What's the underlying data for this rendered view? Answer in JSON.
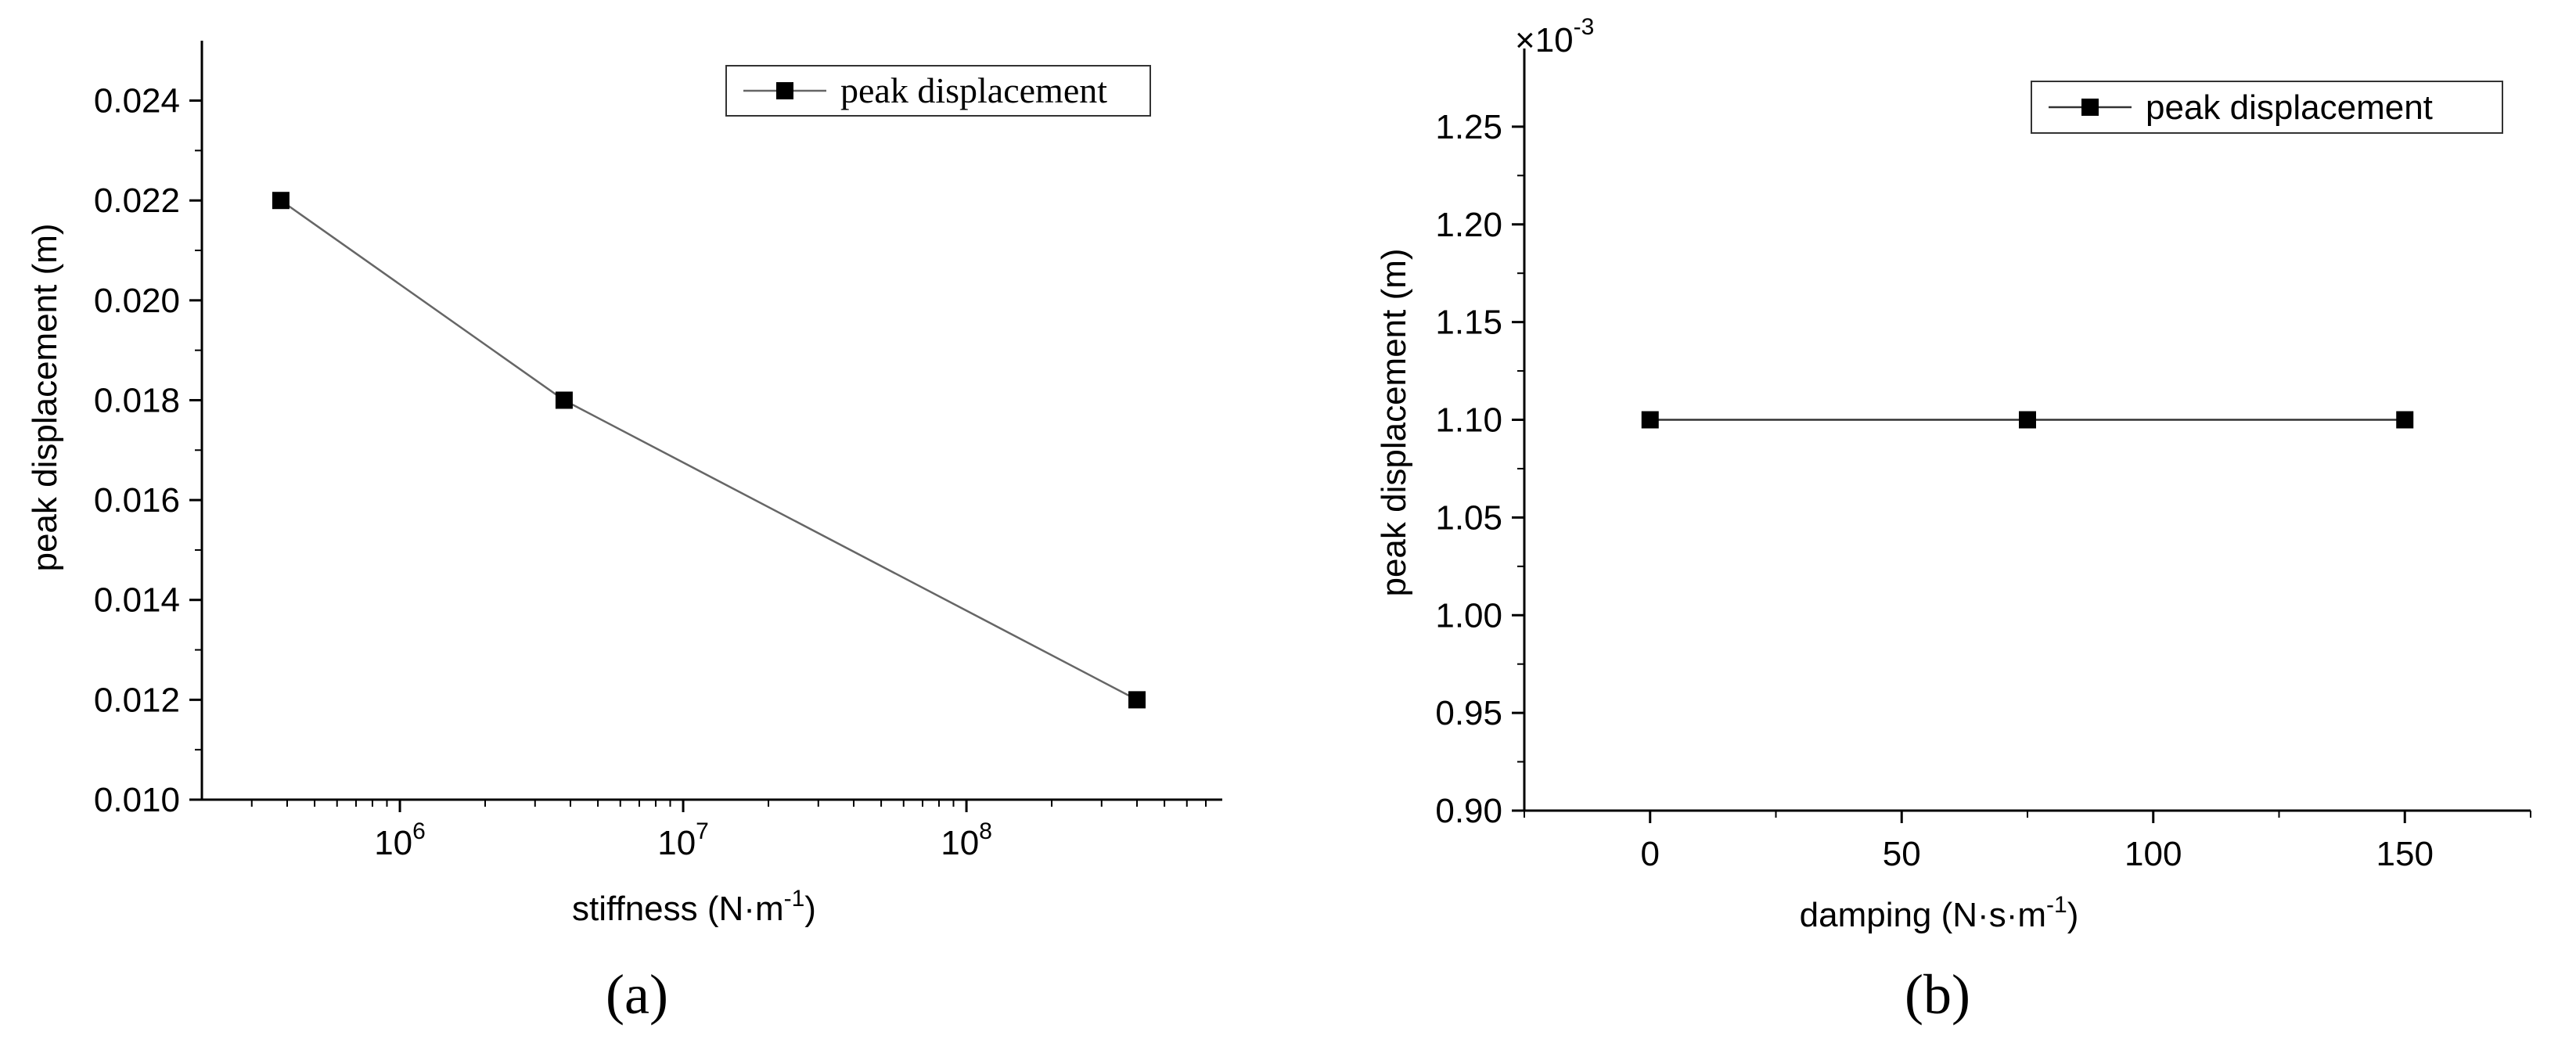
{
  "chart_data": [
    {
      "type": "line",
      "panel_label": "(a)",
      "x_scale": "log",
      "x": [
        380000,
        3800000,
        400000000
      ],
      "series": [
        {
          "name": "peak displacement",
          "values": [
            0.022,
            0.018,
            0.012
          ],
          "marker": "square"
        }
      ],
      "xlabel": "stiffness (N·m",
      "xlabel_sup": "-1",
      "xlabel_suffix": ")",
      "ylabel": "peak displacement (m)",
      "xlim": [
        200000,
        800000000
      ],
      "ylim": [
        0.01,
        0.0252
      ],
      "x_ticks": [
        1000000,
        10000000,
        100000000
      ],
      "x_tick_labels": [
        {
          "base": "10",
          "exp": "6"
        },
        {
          "base": "10",
          "exp": "7"
        },
        {
          "base": "10",
          "exp": "8"
        }
      ],
      "y_ticks": [
        0.01,
        0.012,
        0.014,
        0.016,
        0.018,
        0.02,
        0.022,
        0.024
      ],
      "y_tick_labels": [
        "0.010",
        "0.012",
        "0.014",
        "0.016",
        "0.018",
        "0.020",
        "0.022",
        "0.024"
      ],
      "grid": false,
      "legend_position": "top-right",
      "line_color": "#666666",
      "marker_color": "#000000"
    },
    {
      "type": "line",
      "panel_label": "(b)",
      "x_scale": "linear",
      "x": [
        0,
        75,
        150
      ],
      "series": [
        {
          "name": "peak displacement",
          "values": [
            1.1,
            1.1,
            1.1
          ],
          "marker": "square"
        }
      ],
      "xlabel": "damping (N·s·m",
      "xlabel_sup": "-1",
      "xlabel_suffix": ")",
      "ylabel": "peak displacement (m)",
      "y_multiplier": "×10",
      "y_multiplier_exp": "-3",
      "xlim": [
        -25,
        175
      ],
      "ylim": [
        0.9,
        1.29
      ],
      "x_ticks": [
        0,
        50,
        100,
        150
      ],
      "x_tick_labels": [
        "0",
        "50",
        "100",
        "150"
      ],
      "y_ticks": [
        0.9,
        0.95,
        1.0,
        1.05,
        1.1,
        1.15,
        1.2,
        1.25
      ],
      "y_tick_labels": [
        "0.90",
        "0.95",
        "1.00",
        "1.05",
        "1.10",
        "1.15",
        "1.20",
        "1.25"
      ],
      "grid": false,
      "legend_position": "top-right",
      "line_color": "#333333",
      "marker_color": "#000000"
    }
  ]
}
